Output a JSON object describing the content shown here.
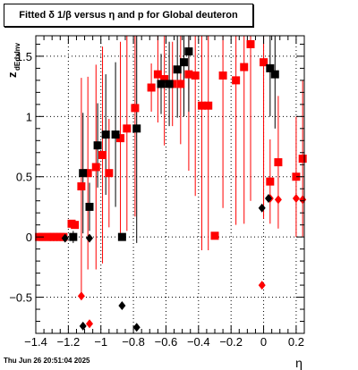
{
  "chart_data": {
    "type": "scatter",
    "title": "Fitted δ 1/β versus η and p for Global deuteron",
    "xlabel": "η",
    "ylabel": "z",
    "ylabel_sub": "dEdxInv",
    "xlim": [
      -1.4,
      0.25
    ],
    "ylim": [
      -0.8,
      1.67
    ],
    "x_ticks": [
      -1.4,
      -1.2,
      -1.0,
      -0.8,
      -0.6,
      -0.4,
      -0.2,
      0.0,
      0.2
    ],
    "x_tick_labels": [
      "−1.4",
      "−1.2",
      "−1",
      "−0.8",
      "−0.6",
      "−0.4",
      "−0.2",
      "0",
      "0.2"
    ],
    "y_ticks": [
      -0.5,
      0.0,
      0.5,
      1.0,
      1.5
    ],
    "y_tick_labels": [
      "−0.5",
      "0",
      "0.5",
      "1",
      "1.5"
    ],
    "grid": true,
    "series": [
      {
        "marker": "square",
        "color": "#ff0000",
        "points": [
          {
            "x": -1.38,
            "y": 0.0,
            "err": 0.01
          },
          {
            "x": -1.36,
            "y": 0.0,
            "err": 0.01
          },
          {
            "x": -1.33,
            "y": 0.0,
            "err": 0.01
          },
          {
            "x": -1.31,
            "y": 0.0,
            "err": 0.01
          },
          {
            "x": -1.29,
            "y": 0.0,
            "err": 0.01
          },
          {
            "x": -1.27,
            "y": 0.0,
            "err": 0.01
          },
          {
            "x": -1.25,
            "y": 0.0,
            "err": 0.01
          },
          {
            "x": -1.23,
            "y": 0.0,
            "err": 0.01
          },
          {
            "x": -1.18,
            "y": 0.11,
            "err": 0.01
          },
          {
            "x": -1.16,
            "y": 0.1,
            "err": 0.01
          },
          {
            "x": -1.12,
            "y": 0.42,
            "err": 0.9
          },
          {
            "x": -1.08,
            "y": 0.53,
            "err": 0.8
          },
          {
            "x": -1.03,
            "y": 0.58,
            "err": 0.85
          },
          {
            "x": -0.99,
            "y": 0.68,
            "err": 0.9
          },
          {
            "x": -0.95,
            "y": 0.53,
            "err": 0.45
          },
          {
            "x": -0.88,
            "y": 0.82,
            "err": 0.8
          },
          {
            "x": -0.84,
            "y": 0.9,
            "err": 0.85
          },
          {
            "x": -0.79,
            "y": 1.07,
            "err": 0.9
          },
          {
            "x": -0.69,
            "y": 1.24,
            "err": 0.2
          },
          {
            "x": -0.65,
            "y": 1.35,
            "err": 0.4
          },
          {
            "x": -0.61,
            "y": 1.31,
            "err": 0.55
          },
          {
            "x": -0.56,
            "y": 1.27,
            "err": 0.35
          },
          {
            "x": -0.51,
            "y": 1.27,
            "err": 0.5
          },
          {
            "x": -0.46,
            "y": 1.35,
            "err": 0.8
          },
          {
            "x": -0.42,
            "y": 1.34,
            "err": 1.0
          },
          {
            "x": -0.38,
            "y": 1.09,
            "err": 1.2
          },
          {
            "x": -0.34,
            "y": 1.09,
            "err": 1.2
          },
          {
            "x": -0.3,
            "y": 0.01,
            "err": 0.02
          },
          {
            "x": -0.25,
            "y": 1.34,
            "err": 1.1
          },
          {
            "x": -0.17,
            "y": 1.3,
            "err": 1.2
          },
          {
            "x": -0.12,
            "y": 1.41,
            "err": 1.3
          },
          {
            "x": -0.08,
            "y": 1.6,
            "err": 1.3
          },
          {
            "x": 0.0,
            "y": 1.45,
            "err": 1.3
          },
          {
            "x": 0.04,
            "y": 0.46,
            "err": 0.35
          },
          {
            "x": 0.09,
            "y": 0.62,
            "err": 0.55
          },
          {
            "x": 0.2,
            "y": 0.5,
            "err": 0.5
          },
          {
            "x": 0.24,
            "y": 0.65,
            "err": 0.65
          }
        ]
      },
      {
        "marker": "square",
        "color": "#000000",
        "points": [
          {
            "x": -1.17,
            "y": 0.0,
            "err": 0.05
          },
          {
            "x": -1.11,
            "y": 0.53,
            "err": 0.5
          },
          {
            "x": -1.07,
            "y": 0.25,
            "err": 0.2
          },
          {
            "x": -1.02,
            "y": 0.76,
            "err": 0.35
          },
          {
            "x": -0.97,
            "y": 0.85,
            "err": 0.5
          },
          {
            "x": -0.91,
            "y": 0.85,
            "err": 0.6
          },
          {
            "x": -0.87,
            "y": 0.0,
            "err": 0.01
          },
          {
            "x": -0.78,
            "y": 0.9,
            "err": 0.95
          },
          {
            "x": -0.63,
            "y": 1.27,
            "err": 0.25
          },
          {
            "x": -0.58,
            "y": 1.27,
            "err": 0.35
          },
          {
            "x": -0.53,
            "y": 1.39,
            "err": 0.4
          },
          {
            "x": -0.49,
            "y": 1.45,
            "err": 0.45
          },
          {
            "x": -0.46,
            "y": 1.54,
            "err": 0.5
          },
          {
            "x": 0.04,
            "y": 1.4,
            "err": 0.4
          },
          {
            "x": 0.07,
            "y": 1.35,
            "err": 0.45
          }
        ]
      },
      {
        "marker": "diamond",
        "color": "#ff0000",
        "points": [
          {
            "x": -1.12,
            "y": -0.49,
            "err": 0.0
          },
          {
            "x": -1.07,
            "y": -0.72,
            "err": 0.0
          },
          {
            "x": -0.01,
            "y": -0.4,
            "err": 0.0
          },
          {
            "x": 0.04,
            "y": 0.32,
            "err": 0.0
          },
          {
            "x": 0.09,
            "y": 0.31,
            "err": 0.0
          },
          {
            "x": 0.2,
            "y": 0.32,
            "err": 0.0
          },
          {
            "x": 0.24,
            "y": 0.31,
            "err": 0.0
          }
        ]
      },
      {
        "marker": "diamond",
        "color": "#000000",
        "points": [
          {
            "x": -1.22,
            "y": -0.01,
            "err": 0.0
          },
          {
            "x": -1.11,
            "y": -0.74,
            "err": 0.0
          },
          {
            "x": -1.07,
            "y": -0.01,
            "err": 0.0
          },
          {
            "x": -0.87,
            "y": -0.57,
            "err": 0.0
          },
          {
            "x": -0.78,
            "y": -0.75,
            "err": 0.0
          },
          {
            "x": -0.01,
            "y": 0.24,
            "err": 0.0
          },
          {
            "x": 0.03,
            "y": 0.32,
            "err": 0.0
          }
        ]
      }
    ]
  },
  "footer": "Thu Jun 26 20:51:04 2025"
}
